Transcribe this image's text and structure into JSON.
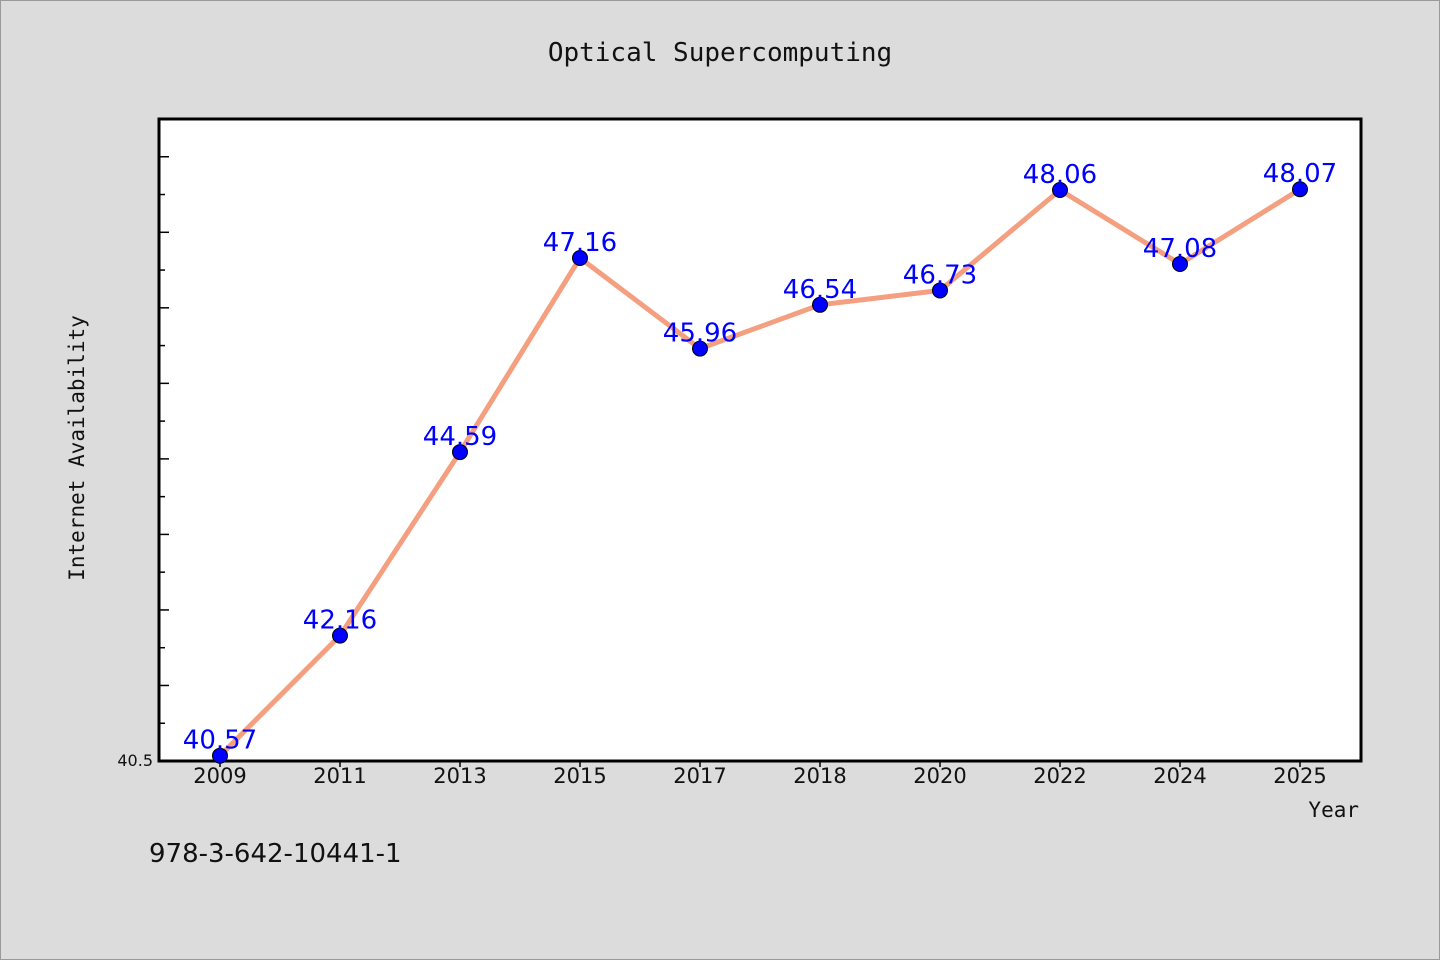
{
  "chart_data": {
    "type": "line",
    "title": "Optical Supercomputing",
    "xlabel": "Year",
    "ylabel": "Internet Availability",
    "categories": [
      "2009",
      "2011",
      "2013",
      "2015",
      "2017",
      "2018",
      "2020",
      "2022",
      "2024",
      "2025"
    ],
    "series": [
      {
        "values": [
          40.57,
          42.16,
          44.59,
          47.16,
          45.96,
          46.54,
          46.73,
          48.06,
          47.08,
          48.07
        ],
        "labels": [
          "40.57",
          "42.16",
          "44.59",
          "47.16",
          "45.96",
          "46.54",
          "46.73",
          "48.06",
          "47.08",
          "48.07"
        ],
        "line_color": "#f4a080",
        "marker_color": "#0000ff",
        "label_color": "#0000ff"
      }
    ],
    "ylim": [
      40.5,
      49.0
    ],
    "yticks_labeled": [
      "40.5"
    ],
    "grid": false,
    "legend": "none"
  },
  "footer": {
    "isbn": "978-3-642-10441-1"
  },
  "colors": {
    "background": "#dcdcdc",
    "plot_background": "#ffffff",
    "line": "#f4a080",
    "marker": "#0000ff",
    "data_label": "#0000ff"
  }
}
